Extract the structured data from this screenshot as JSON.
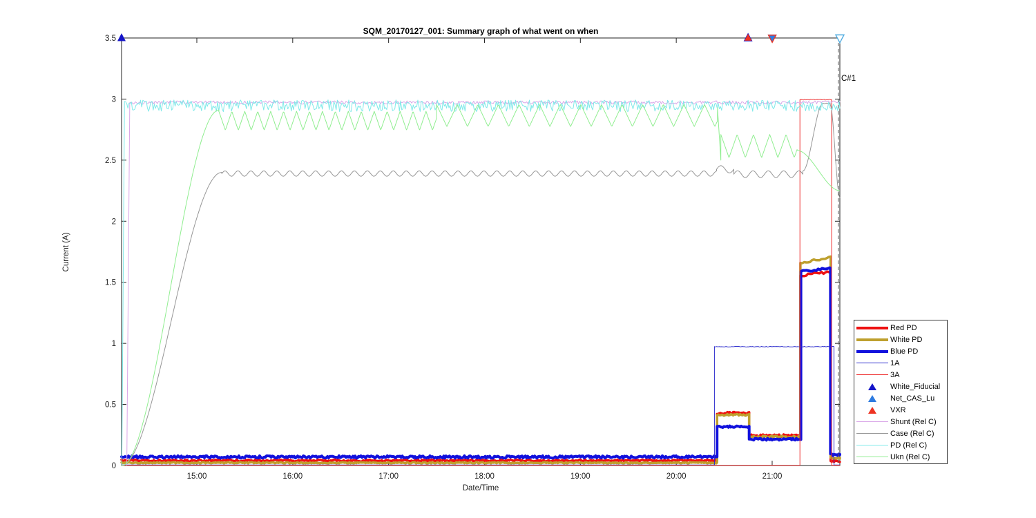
{
  "chart_data": {
    "type": "line",
    "title": "SQM_20170127_001: Summary graph of what went on when",
    "xlabel": "Date/Time",
    "ylabel": "Current (A)",
    "x_axis": {
      "unit": "hours_after_14:00",
      "min": 0.215,
      "max": 7.706,
      "ticks": [
        {
          "t": 1,
          "label": "15:00"
        },
        {
          "t": 2,
          "label": "16:00"
        },
        {
          "t": 3,
          "label": "17:00"
        },
        {
          "t": 4,
          "label": "18:00"
        },
        {
          "t": 5,
          "label": "19:00"
        },
        {
          "t": 6,
          "label": "20:00"
        },
        {
          "t": 7,
          "label": "21:00"
        }
      ]
    },
    "y_axis": {
      "min": 0,
      "max": 3.5,
      "ticks": [
        {
          "v": 0,
          "label": "0"
        },
        {
          "v": 0.5,
          "label": "0.5"
        },
        {
          "v": 1,
          "label": "1"
        },
        {
          "v": 1.5,
          "label": "1.5"
        },
        {
          "v": 2,
          "label": "2"
        },
        {
          "v": 2.5,
          "label": "2.5"
        },
        {
          "v": 3,
          "label": "3"
        },
        {
          "v": 3.5,
          "label": "3.5"
        }
      ]
    },
    "series": [
      {
        "name": "Red PD",
        "color": "#EE1111",
        "width": 3.5,
        "segments": [
          {
            "type": "flat",
            "t": [
              0.215,
              6.425
            ],
            "v": 0.04,
            "noise": 0.008
          },
          {
            "type": "flat",
            "t": [
              6.425,
              6.76
            ],
            "v": 0.43,
            "noise": 0.01
          },
          {
            "type": "flat",
            "t": [
              6.76,
              7.295
            ],
            "v": 0.245,
            "noise": 0.01
          },
          {
            "type": "line",
            "t": [
              7.295,
              7.61
            ],
            "v0": 1.555,
            "v1": 1.585,
            "noise": 0.01
          },
          {
            "type": "flat",
            "t": [
              7.61,
              7.706
            ],
            "v": 0.035,
            "noise": 0.006
          }
        ]
      },
      {
        "name": "White PD",
        "color": "#BEA02E",
        "width": 3.5,
        "segments": [
          {
            "type": "flat",
            "t": [
              0.215,
              6.425
            ],
            "v": 0.022,
            "noise": 0.005
          },
          {
            "type": "flat",
            "t": [
              6.425,
              6.76
            ],
            "v": 0.415,
            "noise": 0.008
          },
          {
            "type": "flat",
            "t": [
              6.76,
              7.295
            ],
            "v": 0.235,
            "noise": 0.008
          },
          {
            "type": "line",
            "t": [
              7.295,
              7.61
            ],
            "v0": 1.655,
            "v1": 1.705,
            "noise": 0.01
          },
          {
            "type": "flat",
            "t": [
              7.61,
              7.706
            ],
            "v": 0.06,
            "noise": 0.006
          }
        ]
      },
      {
        "name": "Blue PD",
        "color": "#1111DD",
        "width": 4,
        "segments": [
          {
            "type": "flat",
            "t": [
              0.215,
              6.425
            ],
            "v": 0.07,
            "noise": 0.01
          },
          {
            "type": "flat",
            "t": [
              6.425,
              6.76
            ],
            "v": 0.318,
            "noise": 0.008
          },
          {
            "type": "flat",
            "t": [
              6.76,
              7.3
            ],
            "v": 0.215,
            "noise": 0.008
          },
          {
            "type": "line",
            "t": [
              7.3,
              7.608
            ],
            "v0": 1.588,
            "v1": 1.615,
            "noise": 0.008
          },
          {
            "type": "flat",
            "t": [
              7.608,
              7.706
            ],
            "v": 0.088,
            "noise": 0.008
          }
        ]
      },
      {
        "name": "1A",
        "color": "#2A2ACC",
        "width": 1,
        "segments": [
          {
            "type": "flat",
            "t": [
              0.215,
              6.398
            ],
            "v": 0.004,
            "noise": 0
          },
          {
            "type": "flat",
            "t": [
              6.398,
              7.645
            ],
            "v": 0.973,
            "noise": 0.003
          },
          {
            "type": "flat",
            "t": [
              7.645,
              7.706
            ],
            "v": 0.004,
            "noise": 0
          }
        ]
      },
      {
        "name": "3A",
        "color": "#EE3333",
        "width": 1,
        "segments": [
          {
            "type": "flat",
            "t": [
              0.215,
              7.29
            ],
            "v": 0.002,
            "noise": 0
          },
          {
            "type": "flat",
            "t": [
              7.29,
              7.62
            ],
            "v": 2.995,
            "noise": 0.003
          },
          {
            "type": "flat",
            "t": [
              7.62,
              7.706
            ],
            "v": 0.002,
            "noise": 0
          }
        ]
      },
      {
        "name": "Shunt (Rel C)",
        "color": "#D9A6E8",
        "width": 1,
        "segments": [
          {
            "type": "line",
            "t": [
              0.27,
              0.3
            ],
            "v0": 0,
            "v1": 2.94,
            "noise": 0
          },
          {
            "type": "flat",
            "t": [
              0.3,
              7.706
            ],
            "v": 2.972,
            "noise": 0.013
          }
        ]
      },
      {
        "name": "Case (Rel C)",
        "color": "#969696",
        "width": 1,
        "segments": [
          {
            "type": "scurve",
            "t": [
              0.215,
              1.26
            ],
            "v0": 0,
            "v1": 2.4
          },
          {
            "type": "sine",
            "t": [
              1.26,
              6.42
            ],
            "mean": 2.39,
            "amp": 0.022,
            "period": 0.135
          },
          {
            "type": "sine",
            "t": [
              6.42,
              6.6
            ],
            "mean": 2.425,
            "amp": 0.03,
            "period": 0.18
          },
          {
            "type": "sine",
            "t": [
              6.6,
              7.32
            ],
            "mean": 2.385,
            "amp": 0.028,
            "period": 0.16
          },
          {
            "type": "scurve",
            "t": [
              7.32,
              7.53
            ],
            "v0": 2.41,
            "v1": 2.965
          },
          {
            "type": "flat",
            "t": [
              7.53,
              7.605
            ],
            "v": 2.965,
            "noise": 0.003
          },
          {
            "type": "scurve",
            "t": [
              7.605,
              7.706
            ],
            "v0": 2.96,
            "v1": 2.19
          }
        ]
      },
      {
        "name": "PD (Rel C)",
        "color": "#7FE9E9",
        "width": 1,
        "segments": [
          {
            "type": "line",
            "t": [
              0.218,
              0.245
            ],
            "v0": 0,
            "v1": 2.92,
            "noise": 0
          },
          {
            "type": "flat",
            "t": [
              0.245,
              7.706
            ],
            "v": 2.945,
            "noise": 0.048
          }
        ]
      },
      {
        "name": "Ukn (Rel C)",
        "color": "#90EE90",
        "width": 1,
        "segments": [
          {
            "type": "scurve",
            "t": [
              0.22,
              1.23
            ],
            "v0": 0,
            "v1": 2.91
          },
          {
            "type": "tri",
            "t": [
              1.23,
              3.5
            ],
            "min": 2.745,
            "max": 2.9,
            "period": 0.135
          },
          {
            "type": "tri",
            "t": [
              3.5,
              6.43
            ],
            "min": 2.775,
            "max": 2.955,
            "period": 0.215
          },
          {
            "type": "line",
            "t": [
              6.43,
              6.465
            ],
            "v0": 2.93,
            "v1": 2.5,
            "noise": 0
          },
          {
            "type": "tri",
            "t": [
              6.465,
              7.26
            ],
            "min": 2.52,
            "max": 2.71,
            "period": 0.17
          },
          {
            "type": "scurve",
            "t": [
              7.26,
              7.706
            ],
            "v0": 2.58,
            "v1": 2.25
          }
        ]
      }
    ],
    "markers": [
      {
        "name": "White_Fiducial",
        "t": 0.215,
        "v": 3.5,
        "shape": "tri-up",
        "fill": "#1414C8",
        "size": 12
      },
      {
        "name": "White_Fiducial",
        "t": 6.749,
        "v": 3.5,
        "shape": "tri-up",
        "fill": "#1414C8",
        "size": 13
      },
      {
        "name": "VXR",
        "t": 6.749,
        "v": 3.5,
        "shape": "tri-up",
        "fill": "#EE3322",
        "size": 10.5
      },
      {
        "name": "Net_CAS_Lu",
        "t": 7.001,
        "v": 3.5,
        "shape": "tri-down",
        "fill": "#2E7BE0",
        "size": 13
      },
      {
        "name": "VXR",
        "t": 7.001,
        "v": 3.5,
        "shape": "tri-down",
        "fill": "none",
        "stroke": "#EE3322",
        "size": 11
      },
      {
        "name": "cursor-head",
        "t": 7.706,
        "v": 3.5,
        "shape": "tri-down",
        "fill": "#FFFFFF",
        "stroke": "#4FABE0",
        "size": 12
      }
    ],
    "cursor": {
      "label": "C#1",
      "t": 7.69
    },
    "legend": {
      "entries": [
        {
          "label": "Red PD",
          "swatch": "line",
          "color": "#EE1111",
          "width": 4
        },
        {
          "label": "White PD",
          "swatch": "line",
          "color": "#BEA02E",
          "width": 4
        },
        {
          "label": "Blue PD",
          "swatch": "line",
          "color": "#1111DD",
          "width": 4
        },
        {
          "label": "1A",
          "swatch": "line",
          "color": "#2A2ACC",
          "width": 1
        },
        {
          "label": "3A",
          "swatch": "line",
          "color": "#EE3333",
          "width": 1
        },
        {
          "label": "White_Fiducial",
          "swatch": "tri",
          "color": "#1414C8"
        },
        {
          "label": "Net_CAS_Lu",
          "swatch": "tri",
          "color": "#2E7BE0"
        },
        {
          "label": "VXR",
          "swatch": "tri",
          "color": "#EE3322"
        },
        {
          "label": "Shunt (Rel C)",
          "swatch": "line",
          "color": "#D9A6E8",
          "width": 1
        },
        {
          "label": "Case (Rel C)",
          "swatch": "line",
          "color": "#969696",
          "width": 1
        },
        {
          "label": "PD (Rel C)",
          "swatch": "line",
          "color": "#7FE9E9",
          "width": 1
        },
        {
          "label": "Ukn (Rel C)",
          "swatch": "line",
          "color": "#90EE90",
          "width": 1
        }
      ]
    }
  }
}
